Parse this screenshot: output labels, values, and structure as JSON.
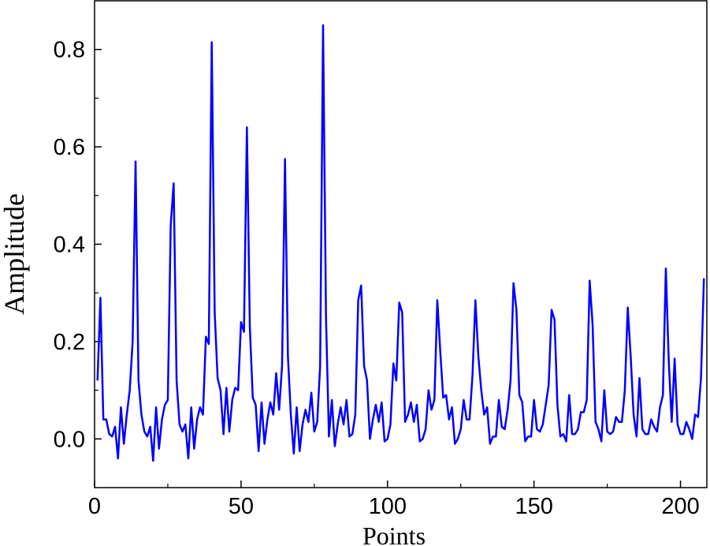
{
  "chart_data": {
    "type": "line",
    "xlabel": "Points",
    "ylabel": "Amplitude",
    "color": "#0000ff",
    "x": [
      1,
      2,
      3,
      4,
      5,
      6,
      7,
      8,
      9,
      10,
      11,
      12,
      13,
      14,
      15,
      16,
      17,
      18,
      19,
      20,
      21,
      22,
      23,
      24,
      25,
      26,
      27,
      28,
      29,
      30,
      31,
      32,
      33,
      34,
      35,
      36,
      37,
      38,
      39,
      40,
      41,
      42,
      43,
      44,
      45,
      46,
      47,
      48,
      49,
      50,
      51,
      52,
      53,
      54,
      55,
      56,
      57,
      58,
      59,
      60,
      61,
      62,
      63,
      64,
      65,
      66,
      67,
      68,
      69,
      70,
      71,
      72,
      73,
      74,
      75,
      76,
      77,
      78,
      79,
      80,
      81,
      82,
      83,
      84,
      85,
      86,
      87,
      88,
      89,
      90,
      91,
      92,
      93,
      94,
      95,
      96,
      97,
      98,
      99,
      100,
      101,
      102,
      103,
      104,
      105,
      106,
      107,
      108,
      109,
      110,
      111,
      112,
      113,
      114,
      115,
      116,
      117,
      118,
      119,
      120,
      121,
      122,
      123,
      124,
      125,
      126,
      127,
      128,
      129,
      130,
      131,
      132,
      133,
      134,
      135,
      136,
      137,
      138,
      139,
      140,
      141,
      142,
      143,
      144,
      145,
      146,
      147,
      148,
      149,
      150,
      151,
      152,
      153,
      154,
      155,
      156,
      157,
      158,
      159,
      160,
      161,
      162,
      163,
      164,
      165,
      166,
      167,
      168,
      169,
      170,
      171,
      172,
      173,
      174,
      175,
      176,
      177,
      178,
      179,
      180,
      181,
      182,
      183,
      184,
      185,
      186,
      187,
      188,
      189,
      190,
      191,
      192,
      193,
      194,
      195,
      196,
      197,
      198,
      199,
      200,
      201,
      202,
      203,
      204,
      205,
      206,
      207,
      208
    ],
    "values": [
      0.12,
      0.29,
      0.04,
      0.04,
      0.01,
      0.005,
      0.025,
      -0.04,
      0.065,
      -0.01,
      0.05,
      0.1,
      0.2,
      0.57,
      0.12,
      0.05,
      0.015,
      0.005,
      0.025,
      -0.045,
      0.065,
      -0.02,
      0.04,
      0.07,
      0.08,
      0.44,
      0.525,
      0.12,
      0.03,
      0.015,
      0.03,
      -0.04,
      0.065,
      -0.02,
      0.04,
      0.065,
      0.05,
      0.21,
      0.195,
      0.815,
      0.26,
      0.125,
      0.1,
      0.01,
      0.105,
      0.015,
      0.08,
      0.105,
      0.1,
      0.24,
      0.22,
      0.64,
      0.23,
      0.085,
      0.07,
      -0.025,
      0.075,
      -0.01,
      0.04,
      0.075,
      0.05,
      0.135,
      0.06,
      0.15,
      0.575,
      0.17,
      0.05,
      -0.03,
      0.065,
      -0.025,
      0.03,
      0.06,
      0.035,
      0.095,
      0.015,
      0.035,
      0.15,
      0.85,
      0.25,
      0.005,
      0.08,
      -0.015,
      0.03,
      0.065,
      0.03,
      0.08,
      0.005,
      0.01,
      0.05,
      0.285,
      0.315,
      0.15,
      0.12,
      0.0,
      0.04,
      0.07,
      0.035,
      0.075,
      -0.005,
      0.0,
      0.03,
      0.155,
      0.12,
      0.28,
      0.26,
      0.035,
      0.05,
      0.075,
      0.035,
      0.07,
      -0.005,
      0.0,
      0.02,
      0.1,
      0.06,
      0.08,
      0.285,
      0.18,
      0.085,
      0.09,
      0.04,
      0.065,
      -0.01,
      0.0,
      0.02,
      0.08,
      0.04,
      0.04,
      0.13,
      0.285,
      0.17,
      0.1,
      0.05,
      0.065,
      -0.01,
      0.005,
      0.005,
      0.08,
      0.025,
      0.02,
      0.06,
      0.12,
      0.32,
      0.265,
      0.09,
      0.075,
      -0.005,
      0.005,
      0.005,
      0.08,
      0.02,
      0.015,
      0.03,
      0.07,
      0.11,
      0.265,
      0.245,
      0.07,
      0.005,
      0.01,
      -0.005,
      0.09,
      0.01,
      0.01,
      0.02,
      0.055,
      0.055,
      0.08,
      0.325,
      0.235,
      0.035,
      0.02,
      -0.005,
      0.1,
      0.015,
      0.01,
      0.015,
      0.045,
      0.035,
      0.035,
      0.1,
      0.27,
      0.17,
      0.05,
      0.005,
      0.125,
      0.02,
      0.01,
      0.01,
      0.04,
      0.025,
      0.015,
      0.065,
      0.09,
      0.35,
      0.16,
      0.035,
      0.165,
      0.03,
      0.01,
      0.01,
      0.035,
      0.02,
      0.0,
      0.05,
      0.045,
      0.125,
      0.33
    ],
    "xlim": [
      0,
      209
    ],
    "ylim": [
      -0.1,
      0.9
    ],
    "xticks": [
      0,
      50,
      100,
      150,
      200
    ],
    "yticks": [
      {
        "value": 0,
        "label": "0.0"
      },
      0.2,
      0.4,
      0.6,
      0.8
    ],
    "minor_xticks": [
      25,
      75,
      125,
      175
    ],
    "minor_yticks": [
      0.1,
      0.3,
      0.5,
      0.7
    ]
  }
}
